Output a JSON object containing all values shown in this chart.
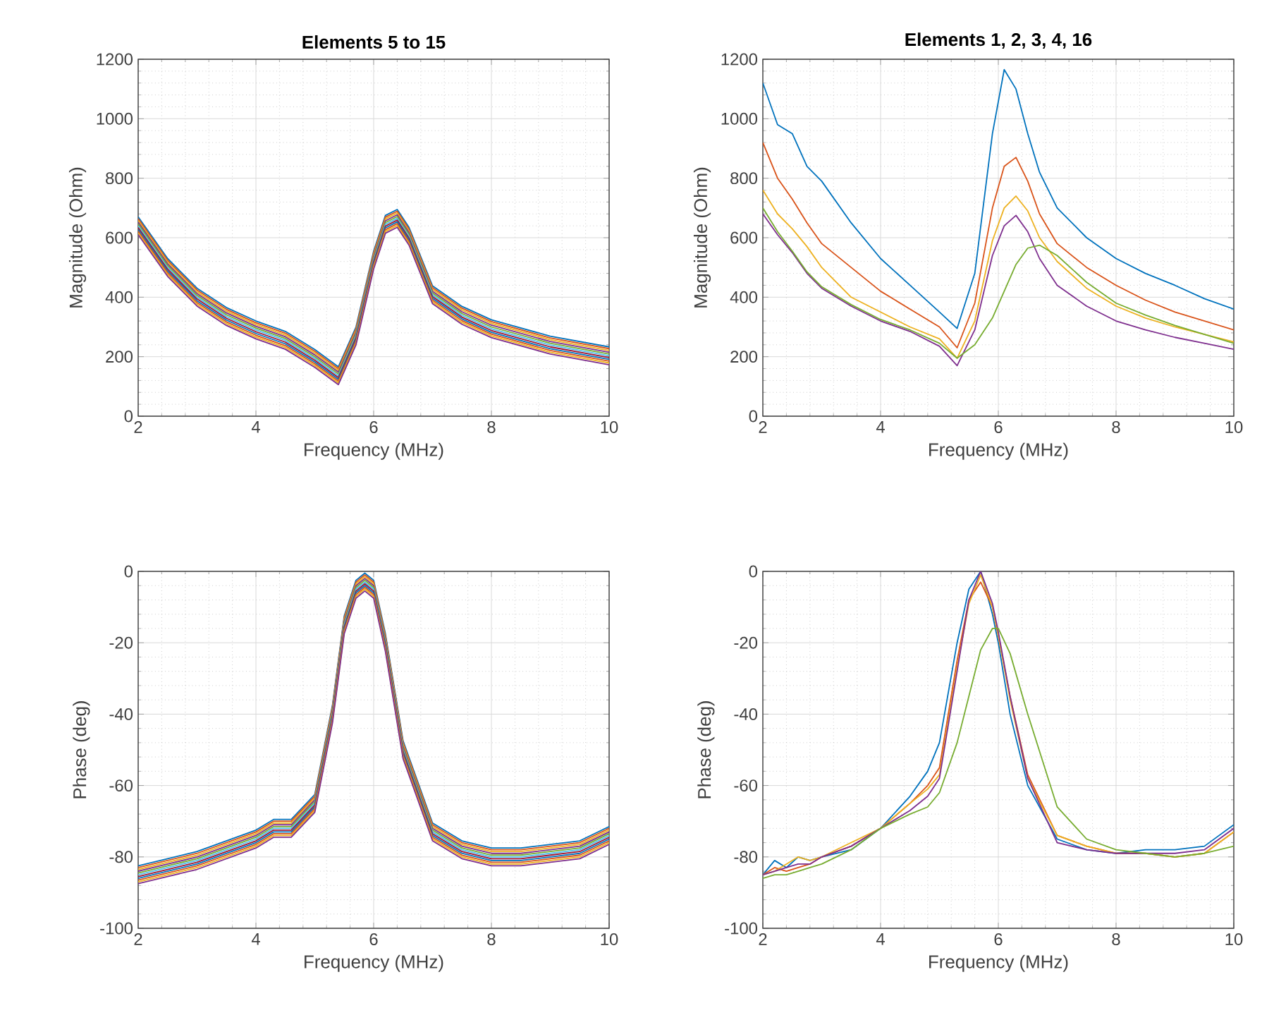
{
  "chart_data": [
    {
      "type": "line",
      "title": "Elements 5 to 15",
      "xlabel": "Frequency (MHz)",
      "ylabel": "Magnitude (Ohm)",
      "grid": true,
      "xlim": [
        2,
        10
      ],
      "ylim": [
        0,
        1200
      ],
      "xticks": [
        2,
        4,
        6,
        8,
        10
      ],
      "yticks": [
        0,
        200,
        400,
        600,
        800,
        1000,
        1200
      ],
      "x": [
        2,
        2.5,
        3,
        3.5,
        4,
        4.5,
        5,
        5.4,
        5.7,
        6,
        6.2,
        6.4,
        6.6,
        7,
        7.5,
        8,
        9,
        10
      ],
      "series": [
        {
          "color": "#0072bd",
          "values": [
            670,
            530,
            430,
            365,
            320,
            285,
            224,
            166,
            300,
            555,
            675,
            695,
            635,
            438,
            369,
            324,
            269,
            233
          ]
        },
        {
          "color": "#d95319",
          "values": [
            664,
            524,
            424,
            359,
            314,
            279,
            218,
            160,
            294,
            549,
            669,
            689,
            629,
            432,
            363,
            318,
            263,
            227
          ]
        },
        {
          "color": "#edb120",
          "values": [
            658,
            518,
            418,
            353,
            308,
            273,
            212,
            154,
            288,
            543,
            663,
            683,
            623,
            426,
            357,
            312,
            257,
            221
          ]
        },
        {
          "color": "#7e2f8e",
          "values": [
            652,
            512,
            412,
            347,
            302,
            267,
            206,
            148,
            282,
            537,
            657,
            677,
            617,
            420,
            351,
            306,
            251,
            215
          ]
        },
        {
          "color": "#77ac30",
          "values": [
            646,
            506,
            406,
            341,
            296,
            261,
            200,
            142,
            276,
            531,
            651,
            671,
            611,
            414,
            345,
            300,
            245,
            209
          ]
        },
        {
          "color": "#4dbeee",
          "values": [
            640,
            500,
            400,
            335,
            290,
            255,
            194,
            136,
            270,
            525,
            645,
            665,
            605,
            408,
            339,
            294,
            239,
            203
          ]
        },
        {
          "color": "#a2142f",
          "values": [
            634,
            494,
            394,
            329,
            284,
            249,
            188,
            130,
            264,
            519,
            639,
            659,
            599,
            402,
            333,
            288,
            233,
            197
          ]
        },
        {
          "color": "#0072bd",
          "values": [
            628,
            488,
            388,
            323,
            278,
            243,
            182,
            124,
            258,
            513,
            633,
            653,
            593,
            396,
            327,
            282,
            227,
            191
          ]
        },
        {
          "color": "#d95319",
          "values": [
            622,
            482,
            382,
            317,
            272,
            237,
            176,
            118,
            252,
            507,
            627,
            647,
            587,
            390,
            321,
            276,
            221,
            185
          ]
        },
        {
          "color": "#edb120",
          "values": [
            616,
            476,
            376,
            311,
            266,
            231,
            170,
            112,
            246,
            501,
            621,
            641,
            581,
            384,
            315,
            270,
            215,
            179
          ]
        },
        {
          "color": "#7e2f8e",
          "values": [
            610,
            470,
            370,
            305,
            260,
            225,
            164,
            106,
            240,
            495,
            615,
            635,
            575,
            378,
            309,
            264,
            209,
            173
          ]
        }
      ]
    },
    {
      "type": "line",
      "title": "Elements 1, 2, 3, 4, 16",
      "xlabel": "Frequency (MHz)",
      "ylabel": "Magnitude (Ohm)",
      "grid": true,
      "xlim": [
        2,
        10
      ],
      "ylim": [
        0,
        1200
      ],
      "xticks": [
        2,
        4,
        6,
        8,
        10
      ],
      "yticks": [
        0,
        200,
        400,
        600,
        800,
        1000,
        1200
      ],
      "x": [
        2,
        2.25,
        2.5,
        2.75,
        3,
        3.5,
        4,
        4.5,
        5,
        5.3,
        5.6,
        5.9,
        6.1,
        6.3,
        6.5,
        6.7,
        7,
        7.5,
        8,
        8.5,
        9,
        9.5,
        10
      ],
      "series": [
        {
          "color": "#0072bd",
          "values": [
            1120,
            980,
            950,
            840,
            790,
            650,
            530,
            440,
            350,
            295,
            480,
            950,
            1165,
            1100,
            950,
            820,
            700,
            600,
            530,
            480,
            440,
            395,
            360
          ]
        },
        {
          "color": "#d95319",
          "values": [
            920,
            800,
            730,
            650,
            580,
            500,
            420,
            360,
            300,
            230,
            380,
            700,
            840,
            870,
            790,
            680,
            580,
            500,
            440,
            390,
            350,
            320,
            290
          ]
        },
        {
          "color": "#edb120",
          "values": [
            760,
            680,
            630,
            570,
            500,
            400,
            350,
            300,
            260,
            195,
            320,
            590,
            700,
            740,
            690,
            600,
            520,
            430,
            370,
            330,
            300,
            275,
            250
          ]
        },
        {
          "color": "#7e2f8e",
          "values": [
            680,
            610,
            550,
            480,
            430,
            370,
            320,
            285,
            235,
            170,
            290,
            540,
            640,
            675,
            620,
            530,
            440,
            370,
            320,
            290,
            265,
            245,
            225
          ]
        },
        {
          "color": "#77ac30",
          "values": [
            700,
            620,
            555,
            485,
            435,
            375,
            325,
            290,
            245,
            195,
            240,
            330,
            420,
            510,
            565,
            575,
            540,
            450,
            380,
            340,
            305,
            275,
            245
          ]
        }
      ]
    },
    {
      "type": "line",
      "xlabel": "Frequency (MHz)",
      "ylabel": "Phase (deg)",
      "grid": true,
      "xlim": [
        2,
        10
      ],
      "ylim": [
        -100,
        0
      ],
      "xticks": [
        2,
        4,
        6,
        8,
        10
      ],
      "yticks": [
        -100,
        -80,
        -60,
        -40,
        -20,
        0
      ],
      "x": [
        2,
        2.5,
        3,
        3.5,
        4,
        4.3,
        4.6,
        5,
        5.3,
        5.5,
        5.7,
        5.85,
        6,
        6.2,
        6.5,
        7,
        7.5,
        8,
        8.5,
        9,
        9.5,
        10
      ],
      "series": [
        {
          "color": "#0072bd",
          "values": [
            -82.5,
            -80.5,
            -78.5,
            -75.5,
            -72.5,
            -69.5,
            -69.5,
            -62.5,
            -37.5,
            -12.5,
            -2.5,
            -0.5,
            -2.5,
            -17.5,
            -47.5,
            -70.5,
            -75.5,
            -77.5,
            -77.5,
            -76.5,
            -75.5,
            -71.5
          ]
        },
        {
          "color": "#d95319",
          "values": [
            -83,
            -81,
            -79,
            -76,
            -73,
            -70,
            -70,
            -63,
            -38,
            -13,
            -3,
            -1,
            -3,
            -18,
            -48,
            -71,
            -76,
            -78,
            -78,
            -77,
            -76,
            -72
          ]
        },
        {
          "color": "#edb120",
          "values": [
            -83.5,
            -81.5,
            -79.5,
            -76.5,
            -73.5,
            -70.5,
            -70.5,
            -63.5,
            -38.5,
            -13.5,
            -3.5,
            -1.5,
            -3.5,
            -18.5,
            -48.5,
            -71.5,
            -76.5,
            -78.5,
            -78.5,
            -77.5,
            -76.5,
            -72.5
          ]
        },
        {
          "color": "#7e2f8e",
          "values": [
            -84,
            -82,
            -80,
            -77,
            -74,
            -71,
            -71,
            -64,
            -39,
            -14,
            -4,
            -2,
            -4,
            -19,
            -49,
            -72,
            -77,
            -79,
            -79,
            -78,
            -77,
            -73
          ]
        },
        {
          "color": "#77ac30",
          "values": [
            -84.5,
            -82.5,
            -80.5,
            -77.5,
            -74.5,
            -71.5,
            -71.5,
            -64.5,
            -39.5,
            -14.5,
            -4.5,
            -2.5,
            -4.5,
            -19.5,
            -49.5,
            -72.5,
            -77.5,
            -79.5,
            -79.5,
            -78.5,
            -77.5,
            -73.5
          ]
        },
        {
          "color": "#4dbeee",
          "values": [
            -85,
            -83,
            -81,
            -78,
            -75,
            -72,
            -72,
            -65,
            -40,
            -15,
            -5,
            -3,
            -5,
            -20,
            -50,
            -73,
            -78,
            -80,
            -80,
            -79,
            -78,
            -74
          ]
        },
        {
          "color": "#a2142f",
          "values": [
            -85.5,
            -83.5,
            -81.5,
            -78.5,
            -75.5,
            -72.5,
            -72.5,
            -65.5,
            -40.5,
            -15.5,
            -5.5,
            -3.5,
            -5.5,
            -20.5,
            -50.5,
            -73.5,
            -78.5,
            -80.5,
            -80.5,
            -79.5,
            -78.5,
            -74.5
          ]
        },
        {
          "color": "#0072bd",
          "values": [
            -86,
            -84,
            -82,
            -79,
            -76,
            -73,
            -73,
            -66,
            -41,
            -16,
            -6,
            -4,
            -6,
            -21,
            -51,
            -74,
            -79,
            -81,
            -81,
            -80,
            -79,
            -75
          ]
        },
        {
          "color": "#d95319",
          "values": [
            -86.5,
            -84.5,
            -82.5,
            -79.5,
            -76.5,
            -73.5,
            -73.5,
            -66.5,
            -41.5,
            -16.5,
            -6.5,
            -4.5,
            -6.5,
            -21.5,
            -51.5,
            -74.5,
            -79.5,
            -81.5,
            -81.5,
            -80.5,
            -79.5,
            -75.5
          ]
        },
        {
          "color": "#edb120",
          "values": [
            -87,
            -85,
            -83,
            -80,
            -77,
            -74,
            -74,
            -67,
            -42,
            -17,
            -7,
            -5,
            -7,
            -22,
            -52,
            -75,
            -80,
            -82,
            -82,
            -81,
            -80,
            -76
          ]
        },
        {
          "color": "#7e2f8e",
          "values": [
            -87.5,
            -85.5,
            -83.5,
            -80.5,
            -77.5,
            -74.5,
            -74.5,
            -67.5,
            -42.5,
            -17.5,
            -7.5,
            -5.5,
            -7.5,
            -22.5,
            -52.5,
            -75.5,
            -80.5,
            -82.5,
            -82.5,
            -81.5,
            -80.5,
            -76.5
          ]
        }
      ]
    },
    {
      "type": "line",
      "xlabel": "Frequency (MHz)",
      "ylabel": "Phase (deg)",
      "grid": true,
      "xlim": [
        2,
        10
      ],
      "ylim": [
        -100,
        0
      ],
      "xticks": [
        2,
        4,
        6,
        8,
        10
      ],
      "yticks": [
        -100,
        -80,
        -60,
        -40,
        -20,
        0
      ],
      "x": [
        2,
        2.2,
        2.4,
        2.6,
        2.8,
        3,
        3.5,
        4,
        4.5,
        4.8,
        5,
        5.3,
        5.5,
        5.7,
        5.9,
        6,
        6.2,
        6.5,
        7,
        7.5,
        8,
        8.5,
        9,
        9.5,
        10
      ],
      "series": [
        {
          "color": "#0072bd",
          "values": [
            -85,
            -81,
            -83,
            -80,
            -81,
            -80,
            -78,
            -72,
            -63,
            -56,
            -48,
            -20,
            -5,
            0,
            -12,
            -20,
            -40,
            -60,
            -75,
            -78,
            -79,
            -78,
            -78,
            -77,
            -71
          ]
        },
        {
          "color": "#d95319",
          "values": [
            -85,
            -83,
            -84,
            -83,
            -82,
            -80,
            -77,
            -72,
            -65,
            -60,
            -55,
            -25,
            -8,
            -3,
            -10,
            -18,
            -35,
            -57,
            -74,
            -77,
            -79,
            -79,
            -80,
            -79,
            -73
          ]
        },
        {
          "color": "#edb120",
          "values": [
            -85,
            -84,
            -82,
            -80,
            -81,
            -80,
            -76,
            -72,
            -65,
            -61,
            -57,
            -27,
            -9,
            -1,
            -10,
            -18,
            -36,
            -58,
            -74,
            -77,
            -79,
            -79,
            -80,
            -79,
            -73
          ]
        },
        {
          "color": "#7e2f8e",
          "values": [
            -85,
            -84,
            -83,
            -82,
            -82,
            -80,
            -77,
            -72,
            -67,
            -63,
            -58,
            -28,
            -8,
            0,
            -9,
            -17,
            -35,
            -58,
            -76,
            -78,
            -79,
            -79,
            -79,
            -78,
            -72
          ]
        },
        {
          "color": "#77ac30",
          "values": [
            -86,
            -85,
            -85,
            -84,
            -83,
            -82,
            -78,
            -72,
            -68,
            -66,
            -62,
            -48,
            -35,
            -22,
            -16,
            -16,
            -23,
            -40,
            -66,
            -75,
            -78,
            -79,
            -80,
            -79,
            -77
          ]
        }
      ]
    }
  ]
}
